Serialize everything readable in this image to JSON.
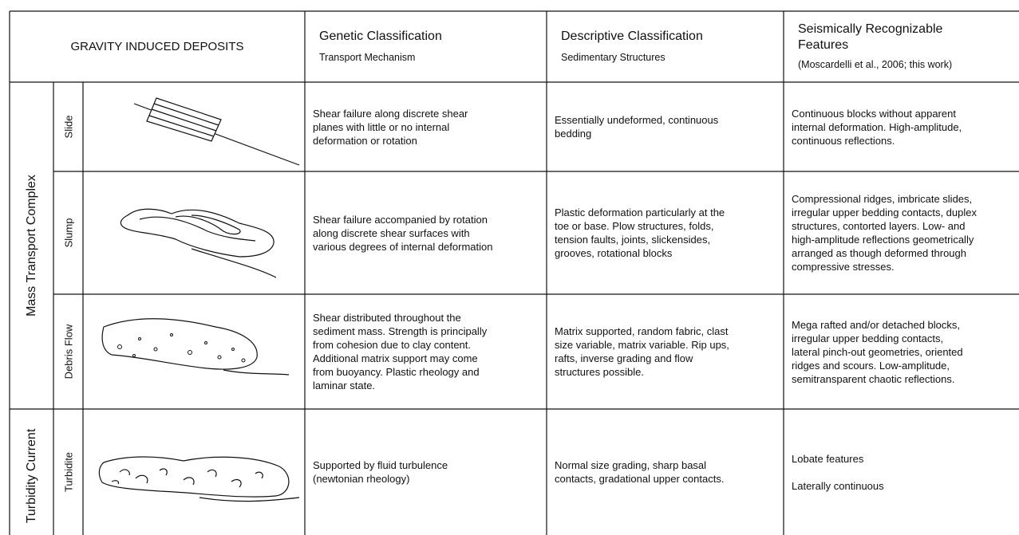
{
  "header": {
    "title": "GRAVITY INDUCED DEPOSITS",
    "columns": [
      {
        "title": [
          "Genetic Classification"
        ],
        "subtitle": "Transport Mechanism"
      },
      {
        "title": [
          "Descriptive Classification"
        ],
        "subtitle": "Sedimentary Structures"
      },
      {
        "title": [
          "Seismically Recognizable",
          "Features"
        ],
        "subtitle": "(Moscardelli et al., 2006; this work)"
      }
    ]
  },
  "groups": [
    {
      "label": "Mass Transport Complex"
    },
    {
      "label": "Turbidity Current"
    }
  ],
  "rows": [
    {
      "type": "Slide",
      "genetic": [
        [
          "Shear failure along discrete shear",
          "planes with little or no internal",
          "deformation or rotation"
        ]
      ],
      "descriptive": [
        [
          "Essentially undeformed, continuous",
          "bedding"
        ]
      ],
      "seismic": [
        [
          "Continuous blocks without apparent",
          "internal deformation. High-amplitude,",
          "continuous reflections."
        ]
      ]
    },
    {
      "type": "Slump",
      "genetic": [
        [
          "Shear failure accompanied by rotation",
          "along discrete shear surfaces with",
          "various degrees of internal deformation"
        ]
      ],
      "descriptive": [
        [
          "Plastic deformation particularly at the",
          "toe or base. Plow structures, folds,",
          "tension faults, joints, slickensides,",
          "grooves, rotational blocks"
        ]
      ],
      "seismic": [
        [
          "Compressional ridges, imbricate slides,",
          "irregular upper bedding contacts, duplex",
          "structures, contorted layers. Low- and",
          "high-amplitude reflections geometrically",
          "arranged as though deformed through",
          "compressive stresses."
        ]
      ]
    },
    {
      "type": "Debris Flow",
      "genetic": [
        [
          "Shear distributed throughout the",
          "sediment mass. Strength is principally",
          "from cohesion due to clay content.",
          "Additional matrix support may come",
          "from buoyancy. Plastic rheology and",
          "laminar state."
        ]
      ],
      "descriptive": [
        [
          "Matrix supported, random fabric, clast",
          "size variable, matrix variable. Rip ups,",
          "rafts, inverse grading and flow",
          "structures possible."
        ]
      ],
      "seismic": [
        [
          "Mega rafted and/or detached blocks,",
          "irregular upper bedding contacts,",
          "lateral pinch-out geometries, oriented",
          "ridges and scours. Low-amplitude,",
          "semitransparent chaotic reflections."
        ]
      ]
    },
    {
      "type": "Turbidite",
      "genetic": [
        [
          "Supported by fluid turbulence",
          "(newtonian rheology)"
        ]
      ],
      "descriptive": [
        [
          "Normal size grading, sharp basal",
          "contacts, gradational upper contacts."
        ]
      ],
      "seismic": [
        [
          "Lobate features"
        ],
        [
          "Laterally continuous"
        ]
      ]
    }
  ]
}
